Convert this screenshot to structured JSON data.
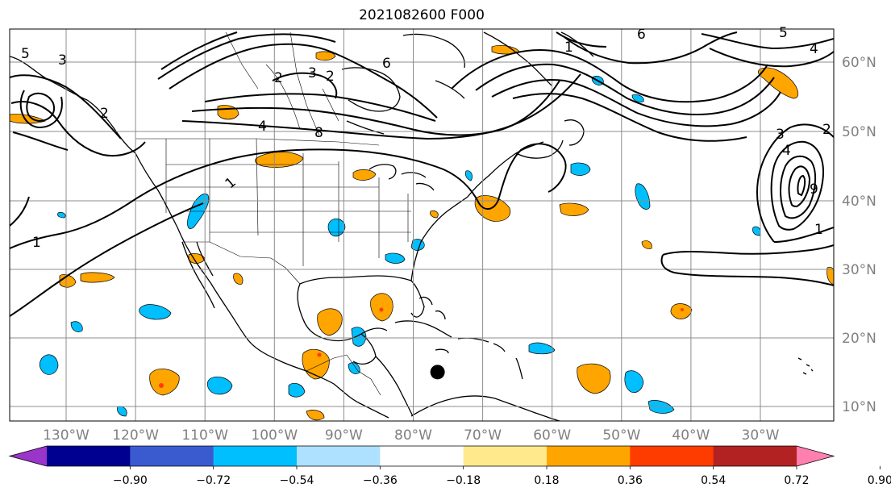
{
  "title": "2021082600 F000",
  "map": {
    "lat_ticks": [
      {
        "value": 60,
        "label": "60°N"
      },
      {
        "value": 50,
        "label": "50°N"
      },
      {
        "value": 40,
        "label": "40°N"
      },
      {
        "value": 30,
        "label": "30°N"
      },
      {
        "value": 20,
        "label": "20°N"
      },
      {
        "value": 10,
        "label": "10°N"
      }
    ],
    "lon_ticks": [
      {
        "value": -130,
        "label": "130°W"
      },
      {
        "value": -120,
        "label": "120°W"
      },
      {
        "value": -110,
        "label": "110°W"
      },
      {
        "value": -100,
        "label": "100°W"
      },
      {
        "value": -90,
        "label": "90°W"
      },
      {
        "value": -80,
        "label": "80°W"
      },
      {
        "value": -70,
        "label": "70°W"
      },
      {
        "value": -60,
        "label": "60°W"
      },
      {
        "value": -50,
        "label": "50°W"
      },
      {
        "value": -40,
        "label": "40°W"
      },
      {
        "value": -30,
        "label": "30°W"
      }
    ],
    "contour_labels": [
      "1",
      "1",
      "1",
      "2",
      "2",
      "3",
      "3",
      "4",
      "4",
      "5",
      "5",
      "6",
      "6",
      "8",
      "9",
      "2",
      "3",
      "4",
      "1",
      "2"
    ],
    "marker": {
      "lon": -76.5,
      "lat": 15.0,
      "color": "#000000"
    },
    "grid": true
  },
  "colorbar": {
    "colors": [
      "#9a35c9",
      "#000090",
      "#3a5bd0",
      "#00bfff",
      "#aee0ff",
      "#ffffff",
      "#ffe98c",
      "#ffa500",
      "#ff3c00",
      "#b22222",
      "#ff7fae"
    ],
    "ticks": [
      "−0.90",
      "−0.72",
      "−0.54",
      "−0.36",
      "−0.18",
      "0.18",
      "0.36",
      "0.54",
      "0.72",
      "0.90"
    ]
  }
}
